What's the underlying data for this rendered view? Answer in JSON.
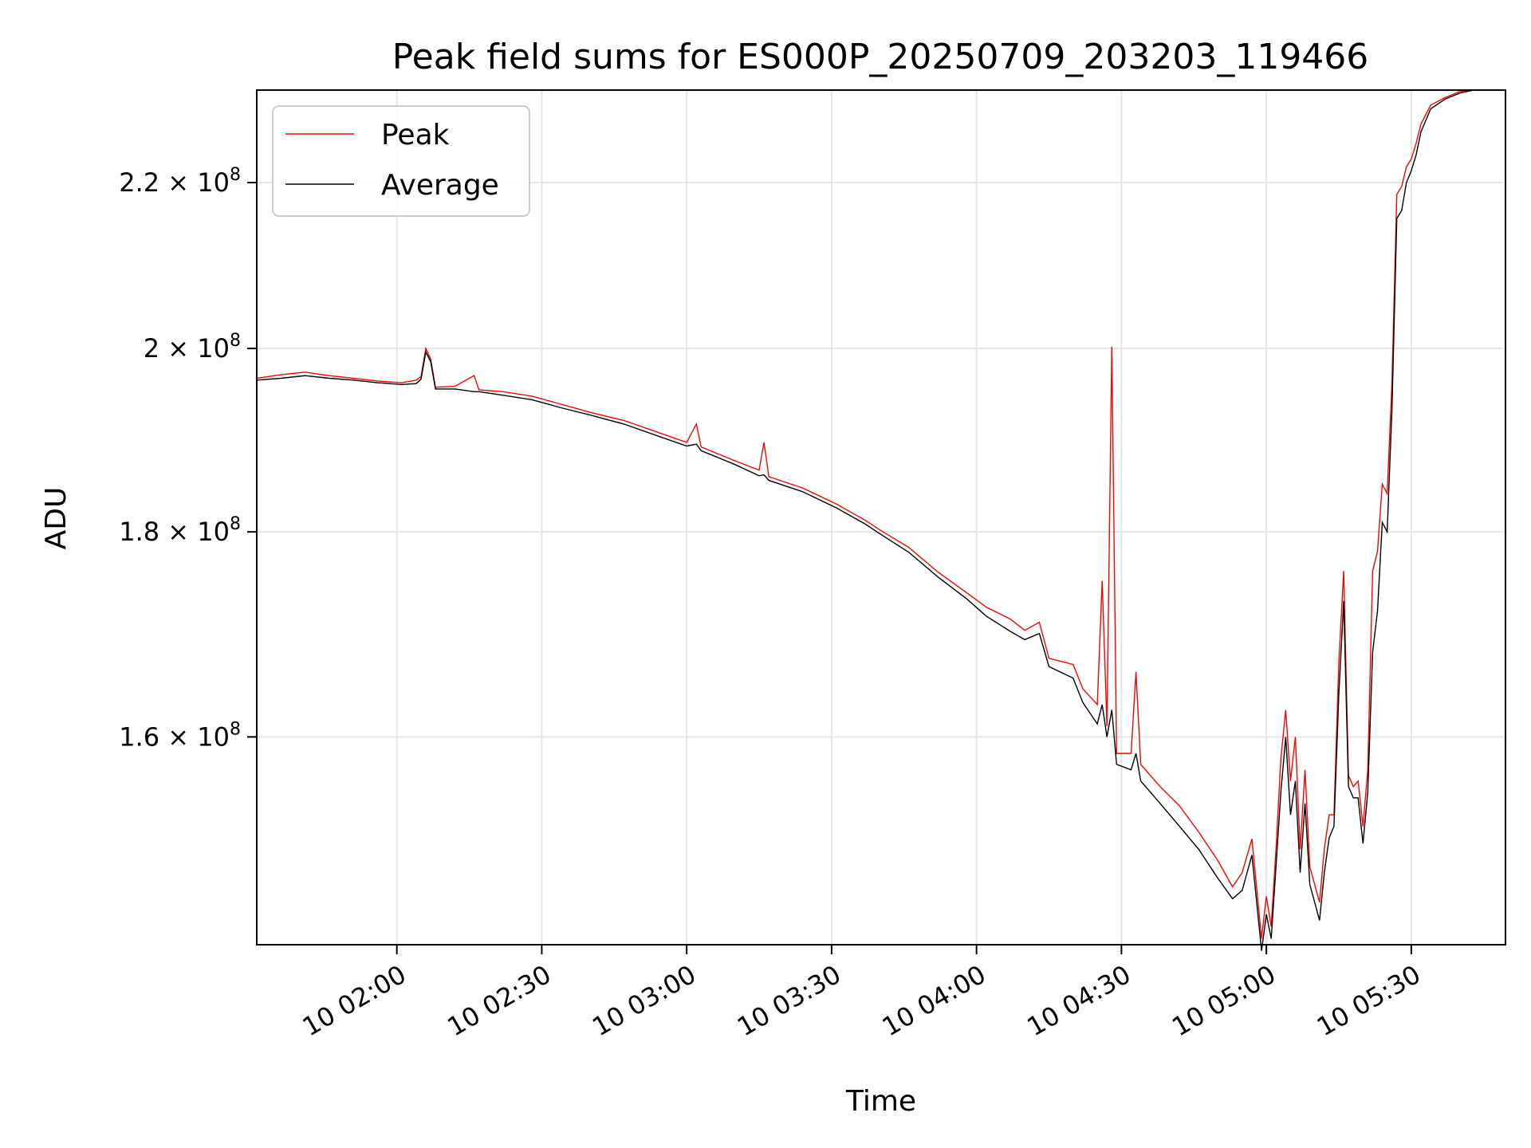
{
  "chart_data": {
    "type": "line",
    "title": "Peak field sums for ES000P_20250709_203203_119466",
    "xlabel": "Time",
    "ylabel": "ADU",
    "y_scale": "log",
    "xlim": [
      "10 01:31:00",
      "10 05:49:30"
    ],
    "ylim": [
      142000000,
      232000000
    ],
    "grid": true,
    "legend_position": "top-left",
    "x_ticks": [
      "10 02:00",
      "10 02:30",
      "10 03:00",
      "10 03:30",
      "10 04:00",
      "10 04:30",
      "10 05:00",
      "10 05:30"
    ],
    "y_ticks": [
      {
        "value": 160000000,
        "mantissa": "1.6",
        "base": "10",
        "exp": "8"
      },
      {
        "value": 180000000,
        "mantissa": "1.8",
        "base": "10",
        "exp": "8"
      },
      {
        "value": 200000000,
        "mantissa": "2",
        "base": "10",
        "exp": "8"
      },
      {
        "value": 220000000,
        "mantissa": "2.2",
        "base": "10",
        "exp": "8"
      }
    ],
    "series": [
      {
        "name": "Peak",
        "color": "#ff0000",
        "points": [
          [
            "10 01:31",
            196.6
          ],
          [
            "10 01:36",
            197.0
          ],
          [
            "10 01:41",
            197.3
          ],
          [
            "10 01:46",
            196.9
          ],
          [
            "10 01:51",
            196.6
          ],
          [
            "10 01:56",
            196.3
          ],
          [
            "10 02:01",
            196.1
          ],
          [
            "10 02:04",
            196.4
          ],
          [
            "10 02:05",
            196.8
          ],
          [
            "10 02:06",
            200.0
          ],
          [
            "10 02:07",
            198.8
          ],
          [
            "10 02:08",
            195.6
          ],
          [
            "10 02:12",
            195.7
          ],
          [
            "10 02:16",
            196.9
          ],
          [
            "10 02:17",
            195.3
          ],
          [
            "10 02:22",
            195.1
          ],
          [
            "10 02:28",
            194.6
          ],
          [
            "10 02:34",
            193.7
          ],
          [
            "10 02:40",
            192.8
          ],
          [
            "10 02:47",
            191.9
          ],
          [
            "10 02:54",
            190.6
          ],
          [
            "10 03:00",
            189.5
          ],
          [
            "10 03:02",
            191.5
          ],
          [
            "10 03:03",
            189.0
          ],
          [
            "10 03:10",
            187.5
          ],
          [
            "10 03:15",
            186.5
          ],
          [
            "10 03:16",
            189.5
          ],
          [
            "10 03:17",
            185.8
          ],
          [
            "10 03:24",
            184.6
          ],
          [
            "10 03:31",
            182.9
          ],
          [
            "10 03:37",
            181.2
          ],
          [
            "10 03:40",
            180.2
          ],
          [
            "10 03:46",
            178.4
          ],
          [
            "10 03:52",
            175.9
          ],
          [
            "10 03:58",
            173.8
          ],
          [
            "10 04:02",
            172.4
          ],
          [
            "10 04:07",
            171.2
          ],
          [
            "10 04:10",
            170.1
          ],
          [
            "10 04:13",
            170.9
          ],
          [
            "10 04:15",
            167.4
          ],
          [
            "10 04:20",
            166.8
          ],
          [
            "10 04:22",
            164.5
          ],
          [
            "10 04:25",
            163.0
          ],
          [
            "10 04:26",
            175.0
          ],
          [
            "10 04:27",
            161.0
          ],
          [
            "10 04:28",
            200.2
          ],
          [
            "10 04:29",
            158.5
          ],
          [
            "10 04:32",
            158.5
          ],
          [
            "10 04:33",
            166.1
          ],
          [
            "10 04:34",
            157.5
          ],
          [
            "10 04:38",
            155.5
          ],
          [
            "10 04:42",
            153.8
          ],
          [
            "10 04:46",
            151.5
          ],
          [
            "10 04:50",
            149.0
          ],
          [
            "10 04:53",
            146.8
          ],
          [
            "10 04:55",
            148.0
          ],
          [
            "10 04:57",
            150.9
          ],
          [
            "10 04:59",
            142.5
          ],
          [
            "10 05:00",
            146.0
          ],
          [
            "10 05:01",
            143.5
          ],
          [
            "10 05:02",
            150.0
          ],
          [
            "10 05:03",
            158.0
          ],
          [
            "10 05:04",
            162.5
          ],
          [
            "10 05:05",
            156.0
          ],
          [
            "10 05:06",
            160.0
          ],
          [
            "10 05:07",
            150.0
          ],
          [
            "10 05:08",
            157.0
          ],
          [
            "10 05:09",
            148.5
          ],
          [
            "10 05:10",
            147.0
          ],
          [
            "10 05:11",
            145.5
          ],
          [
            "10 05:12",
            150.0
          ],
          [
            "10 05:13",
            153.0
          ],
          [
            "10 05:14",
            153.0
          ],
          [
            "10 05:15",
            167.0
          ],
          [
            "10 05:16",
            176.0
          ],
          [
            "10 05:17",
            156.5
          ],
          [
            "10 05:18",
            155.5
          ],
          [
            "10 05:19",
            156.0
          ],
          [
            "10 05:20",
            152.0
          ],
          [
            "10 05:21",
            157.0
          ],
          [
            "10 05:22",
            176.0
          ],
          [
            "10 05:23",
            178.0
          ],
          [
            "10 05:24",
            185.0
          ],
          [
            "10 05:25",
            184.0
          ],
          [
            "10 05:26",
            196.0
          ],
          [
            "10 05:27",
            218.5
          ],
          [
            "10 05:28",
            219.5
          ],
          [
            "10 05:29",
            222.0
          ],
          [
            "10 05:30",
            223.0
          ],
          [
            "10 05:31",
            225.0
          ],
          [
            "10 05:32",
            227.5
          ],
          [
            "10 05:34",
            230.0
          ],
          [
            "10 05:37",
            231.0
          ],
          [
            "10 05:40",
            231.8
          ],
          [
            "10 05:43",
            232.0
          ]
        ]
      },
      {
        "name": "Average",
        "color": "#000000",
        "points": [
          [
            "10 01:31",
            196.4
          ],
          [
            "10 01:36",
            196.6
          ],
          [
            "10 01:41",
            196.9
          ],
          [
            "10 01:46",
            196.6
          ],
          [
            "10 01:51",
            196.4
          ],
          [
            "10 01:56",
            196.1
          ],
          [
            "10 02:01",
            195.9
          ],
          [
            "10 02:04",
            196.0
          ],
          [
            "10 02:05",
            196.5
          ],
          [
            "10 02:06",
            199.6
          ],
          [
            "10 02:07",
            198.5
          ],
          [
            "10 02:08",
            195.4
          ],
          [
            "10 02:12",
            195.4
          ],
          [
            "10 02:16",
            195.1
          ],
          [
            "10 02:17",
            195.1
          ],
          [
            "10 02:22",
            194.7
          ],
          [
            "10 02:28",
            194.2
          ],
          [
            "10 02:34",
            193.3
          ],
          [
            "10 02:40",
            192.5
          ],
          [
            "10 02:47",
            191.5
          ],
          [
            "10 02:54",
            190.2
          ],
          [
            "10 03:00",
            189.1
          ],
          [
            "10 03:02",
            189.3
          ],
          [
            "10 03:03",
            188.6
          ],
          [
            "10 03:10",
            187.1
          ],
          [
            "10 03:15",
            185.9
          ],
          [
            "10 03:16",
            186.0
          ],
          [
            "10 03:17",
            185.4
          ],
          [
            "10 03:24",
            184.2
          ],
          [
            "10 03:31",
            182.5
          ],
          [
            "10 03:37",
            180.8
          ],
          [
            "10 03:40",
            179.8
          ],
          [
            "10 03:46",
            177.9
          ],
          [
            "10 03:52",
            175.4
          ],
          [
            "10 03:58",
            173.2
          ],
          [
            "10 04:02",
            171.5
          ],
          [
            "10 04:07",
            170.0
          ],
          [
            "10 04:10",
            169.2
          ],
          [
            "10 04:13",
            169.8
          ],
          [
            "10 04:15",
            166.6
          ],
          [
            "10 04:20",
            165.5
          ],
          [
            "10 04:22",
            163.2
          ],
          [
            "10 04:25",
            161.2
          ],
          [
            "10 04:26",
            163.0
          ],
          [
            "10 04:27",
            160.0
          ],
          [
            "10 04:28",
            162.5
          ],
          [
            "10 04:29",
            157.5
          ],
          [
            "10 04:32",
            157.0
          ],
          [
            "10 04:33",
            158.5
          ],
          [
            "10 04:34",
            156.0
          ],
          [
            "10 04:38",
            154.0
          ],
          [
            "10 04:42",
            152.0
          ],
          [
            "10 04:46",
            150.0
          ],
          [
            "10 04:50",
            147.5
          ],
          [
            "10 04:53",
            145.8
          ],
          [
            "10 04:55",
            146.5
          ],
          [
            "10 04:57",
            149.5
          ],
          [
            "10 04:59",
            141.5
          ],
          [
            "10 05:00",
            144.5
          ],
          [
            "10 05:01",
            142.5
          ],
          [
            "10 05:02",
            148.5
          ],
          [
            "10 05:03",
            155.0
          ],
          [
            "10 05:04",
            160.0
          ],
          [
            "10 05:05",
            153.0
          ],
          [
            "10 05:06",
            156.0
          ],
          [
            "10 05:07",
            148.0
          ],
          [
            "10 05:08",
            154.0
          ],
          [
            "10 05:09",
            147.0
          ],
          [
            "10 05:10",
            145.5
          ],
          [
            "10 05:11",
            144.0
          ],
          [
            "10 05:12",
            148.0
          ],
          [
            "10 05:13",
            151.0
          ],
          [
            "10 05:14",
            152.0
          ],
          [
            "10 05:15",
            164.0
          ],
          [
            "10 05:16",
            173.0
          ],
          [
            "10 05:17",
            155.5
          ],
          [
            "10 05:18",
            154.5
          ],
          [
            "10 05:19",
            154.5
          ],
          [
            "10 05:20",
            150.5
          ],
          [
            "10 05:21",
            155.0
          ],
          [
            "10 05:22",
            168.0
          ],
          [
            "10 05:23",
            172.0
          ],
          [
            "10 05:24",
            181.0
          ],
          [
            "10 05:25",
            180.0
          ],
          [
            "10 05:26",
            193.0
          ],
          [
            "10 05:27",
            215.5
          ],
          [
            "10 05:28",
            216.5
          ],
          [
            "10 05:29",
            220.0
          ],
          [
            "10 05:30",
            221.5
          ],
          [
            "10 05:31",
            223.5
          ],
          [
            "10 05:32",
            226.5
          ],
          [
            "10 05:34",
            229.5
          ],
          [
            "10 05:37",
            230.8
          ],
          [
            "10 05:40",
            231.6
          ],
          [
            "10 05:43",
            232.0
          ]
        ]
      }
    ]
  }
}
